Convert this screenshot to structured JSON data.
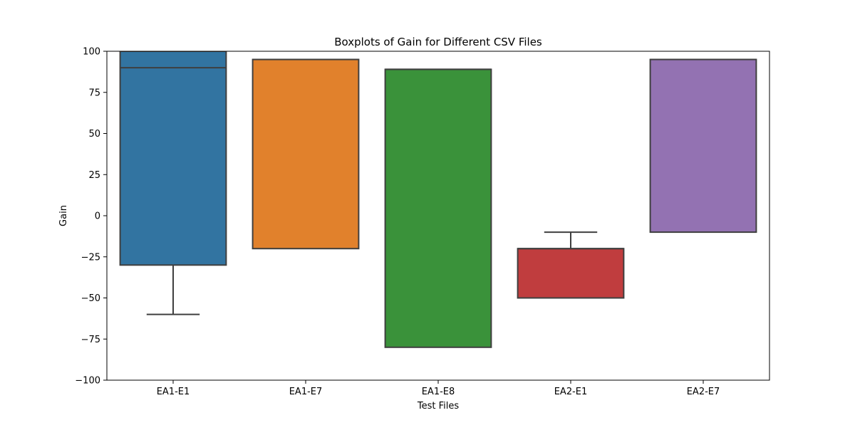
{
  "chart_data": {
    "type": "box",
    "title": "Boxplots of Gain for Different CSV Files",
    "xlabel": "Test Files",
    "ylabel": "Gain",
    "ylim": [
      -100,
      100
    ],
    "yticks": [
      -100,
      -75,
      -50,
      -25,
      0,
      25,
      50,
      75,
      100
    ],
    "categories": [
      "EA1-E1",
      "EA1-E7",
      "EA1-E8",
      "EA2-E1",
      "EA2-E7"
    ],
    "boxes": [
      {
        "category": "EA1-E1",
        "whisker_low": -60,
        "q1": -30,
        "median": 90,
        "q3": 100,
        "whisker_high": 100,
        "color": "#3274a1"
      },
      {
        "category": "EA1-E7",
        "whisker_low": -20,
        "q1": -20,
        "median": 95,
        "q3": 95,
        "whisker_high": 95,
        "color": "#e1812c"
      },
      {
        "category": "EA1-E8",
        "whisker_low": -80,
        "q1": -80,
        "median": 89,
        "q3": 89,
        "whisker_high": 89,
        "color": "#3a923a"
      },
      {
        "category": "EA2-E1",
        "whisker_low": -50,
        "q1": -50,
        "median": -20,
        "q3": -20,
        "whisker_high": -10,
        "color": "#c03d3e"
      },
      {
        "category": "EA2-E7",
        "whisker_low": -10,
        "q1": -10,
        "median": 95,
        "q3": 95,
        "whisker_high": 95,
        "color": "#9372b2"
      }
    ],
    "grid": false,
    "legend": "none",
    "edge_color": "#3f3f3f"
  }
}
